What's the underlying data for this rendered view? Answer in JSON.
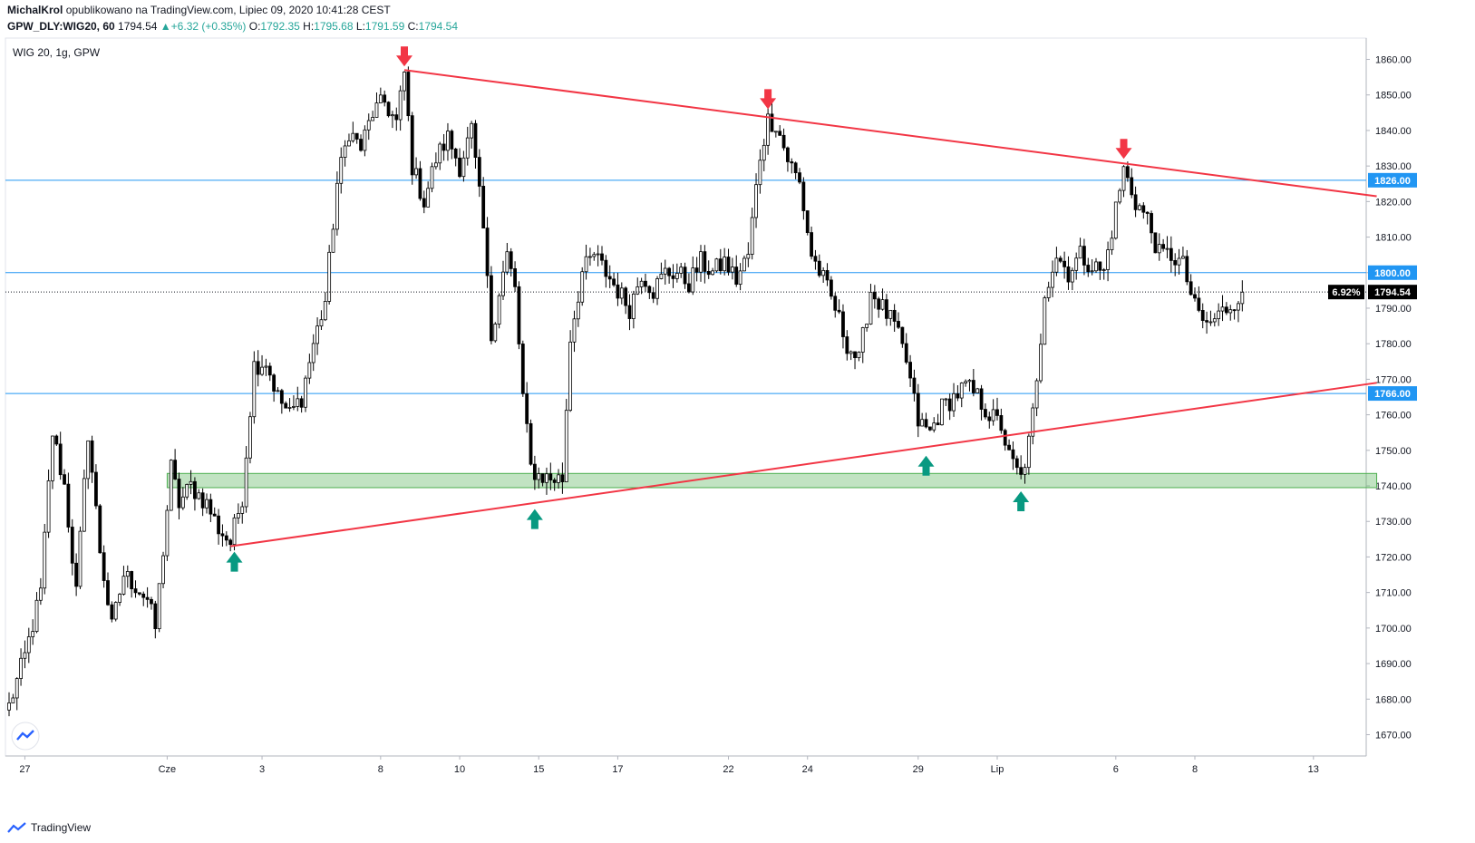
{
  "header": {
    "author": "MichalKrol",
    "published_text": "opublikowano na TradingView.com, Lipiec 09, 2020 10:41:28 CEST",
    "symbol": "GPW_DLY:WIG20, 60",
    "last": "1794.54",
    "change": "+6.32 (+0.35%)",
    "o_label": "O:",
    "o_value": "1792.35",
    "h_label": "H:",
    "h_value": "1795.68",
    "l_label": "L:",
    "l_value": "1791.59",
    "c_label": "C:",
    "c_value": "1794.54"
  },
  "footer": {
    "brand": "TradingView"
  },
  "chart_data": {
    "type": "candlestick",
    "title": "WIG 20, 1g, GPW",
    "ylim": [
      1664,
      1866
    ],
    "y_ticks": [
      1670,
      1680,
      1690,
      1700,
      1710,
      1720,
      1730,
      1740,
      1750,
      1760,
      1770,
      1780,
      1790,
      1800,
      1810,
      1820,
      1830,
      1840,
      1850,
      1860
    ],
    "x_ticks": [
      {
        "label": "27",
        "bar": 4
      },
      {
        "label": "Cze",
        "bar": 40
      },
      {
        "label": "3",
        "bar": 64
      },
      {
        "label": "8",
        "bar": 94
      },
      {
        "label": "10",
        "bar": 114
      },
      {
        "label": "15",
        "bar": 134
      },
      {
        "label": "17",
        "bar": 154
      },
      {
        "label": "22",
        "bar": 182
      },
      {
        "label": "24",
        "bar": 202
      },
      {
        "label": "29",
        "bar": 230
      },
      {
        "label": "Lip",
        "bar": 250
      },
      {
        "label": "6",
        "bar": 280
      },
      {
        "label": "8",
        "bar": 300
      },
      {
        "label": "13",
        "bar": 330
      }
    ],
    "horizontal_levels": [
      {
        "value": 1826.0,
        "label": "1826.00",
        "color": "#2196f3"
      },
      {
        "value": 1800.0,
        "label": "1800.00",
        "color": "#2196f3"
      },
      {
        "value": 1766.0,
        "label": "1766.00",
        "color": "#2196f3"
      }
    ],
    "last_price": {
      "value": 1794.54,
      "label": "1794.54",
      "pct_label": "6.92%"
    },
    "support_zone": {
      "from_bar": 40,
      "to_bar": 346,
      "low": 1739.5,
      "high": 1743.5,
      "color": "#4caf50"
    },
    "trendlines": [
      {
        "name": "resistance",
        "from": {
          "bar": 100,
          "price": 1857
        },
        "to": {
          "bar": 346,
          "price": 1821.5
        },
        "color": "#f23645"
      },
      {
        "name": "support",
        "from": {
          "bar": 56,
          "price": 1723
        },
        "to": {
          "bar": 346,
          "price": 1769
        },
        "color": "#f23645"
      }
    ],
    "arrows": [
      {
        "dir": "down",
        "bar": 100,
        "price": 1857
      },
      {
        "dir": "down",
        "bar": 192,
        "price": 1845
      },
      {
        "dir": "down",
        "bar": 282,
        "price": 1831
      },
      {
        "dir": "up",
        "bar": 57,
        "price": 1723
      },
      {
        "dir": "up",
        "bar": 133,
        "price": 1735
      },
      {
        "dir": "up",
        "bar": 232,
        "price": 1750
      },
      {
        "dir": "up",
        "bar": 256,
        "price": 1740
      }
    ],
    "price_path": [
      [
        0,
        1678
      ],
      [
        4,
        1692
      ],
      [
        8,
        1710
      ],
      [
        11,
        1755
      ],
      [
        14,
        1740
      ],
      [
        17,
        1710
      ],
      [
        20,
        1755
      ],
      [
        23,
        1722
      ],
      [
        26,
        1700
      ],
      [
        29,
        1715
      ],
      [
        32,
        1712
      ],
      [
        35,
        1708
      ],
      [
        37,
        1700
      ],
      [
        39,
        1722
      ],
      [
        41,
        1745
      ],
      [
        43,
        1735
      ],
      [
        46,
        1740
      ],
      [
        50,
        1735
      ],
      [
        53,
        1728
      ],
      [
        56,
        1724
      ],
      [
        59,
        1737
      ],
      [
        62,
        1774
      ],
      [
        65,
        1775
      ],
      [
        68,
        1765
      ],
      [
        71,
        1760
      ],
      [
        74,
        1765
      ],
      [
        77,
        1780
      ],
      [
        80,
        1792
      ],
      [
        83,
        1825
      ],
      [
        86,
        1840
      ],
      [
        89,
        1835
      ],
      [
        92,
        1845
      ],
      [
        95,
        1848
      ],
      [
        98,
        1842
      ],
      [
        100,
        1856
      ],
      [
        102,
        1830
      ],
      [
        105,
        1820
      ],
      [
        108,
        1832
      ],
      [
        111,
        1838
      ],
      [
        114,
        1830
      ],
      [
        117,
        1840
      ],
      [
        120,
        1812
      ],
      [
        122,
        1782
      ],
      [
        124,
        1795
      ],
      [
        126,
        1805
      ],
      [
        128,
        1795
      ],
      [
        130,
        1765
      ],
      [
        132,
        1745
      ],
      [
        134,
        1743
      ],
      [
        137,
        1742
      ],
      [
        140,
        1742
      ],
      [
        142,
        1782
      ],
      [
        145,
        1800
      ],
      [
        148,
        1805
      ],
      [
        151,
        1800
      ],
      [
        154,
        1795
      ],
      [
        157,
        1790
      ],
      [
        160,
        1800
      ],
      [
        163,
        1795
      ],
      [
        166,
        1800
      ],
      [
        169,
        1800
      ],
      [
        172,
        1797
      ],
      [
        175,
        1803
      ],
      [
        178,
        1800
      ],
      [
        181,
        1803
      ],
      [
        184,
        1798
      ],
      [
        187,
        1805
      ],
      [
        190,
        1833
      ],
      [
        192,
        1843
      ],
      [
        194,
        1842
      ],
      [
        197,
        1832
      ],
      [
        200,
        1825
      ],
      [
        203,
        1805
      ],
      [
        206,
        1798
      ],
      [
        209,
        1790
      ],
      [
        212,
        1780
      ],
      [
        215,
        1775
      ],
      [
        218,
        1795
      ],
      [
        221,
        1790
      ],
      [
        224,
        1785
      ],
      [
        227,
        1775
      ],
      [
        230,
        1758
      ],
      [
        233,
        1755
      ],
      [
        236,
        1762
      ],
      [
        239,
        1765
      ],
      [
        242,
        1768
      ],
      [
        245,
        1765
      ],
      [
        248,
        1760
      ],
      [
        251,
        1757
      ],
      [
        253,
        1748
      ],
      [
        256,
        1742
      ],
      [
        258,
        1752
      ],
      [
        260,
        1768
      ],
      [
        262,
        1795
      ],
      [
        265,
        1805
      ],
      [
        268,
        1800
      ],
      [
        271,
        1805
      ],
      [
        274,
        1802
      ],
      [
        277,
        1800
      ],
      [
        280,
        1818
      ],
      [
        282,
        1829
      ],
      [
        285,
        1820
      ],
      [
        288,
        1815
      ],
      [
        291,
        1805
      ],
      [
        294,
        1805
      ],
      [
        297,
        1802
      ],
      [
        300,
        1790
      ],
      [
        303,
        1785
      ],
      [
        306,
        1788
      ],
      [
        309,
        1791
      ],
      [
        312,
        1794.5
      ]
    ]
  }
}
